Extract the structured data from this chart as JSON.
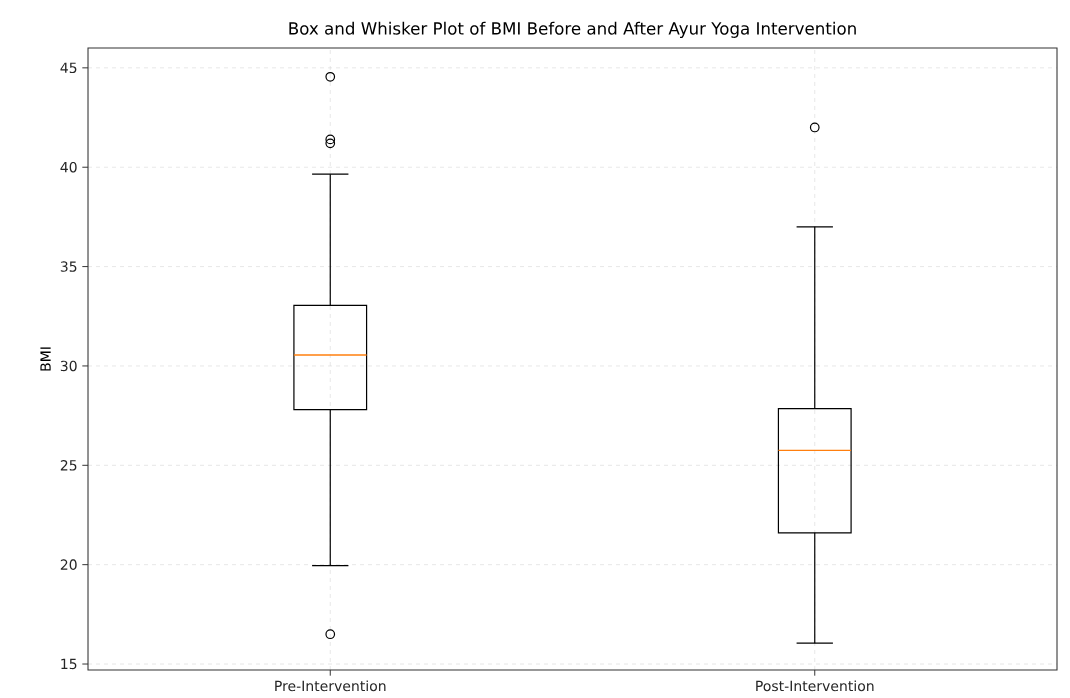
{
  "chart_data": {
    "type": "box",
    "title": "Box and Whisker Plot of BMI Before and After Ayur Yoga Intervention",
    "ylabel": "BMI",
    "categories": [
      "Pre-Intervention",
      "Post-Intervention"
    ],
    "boxes": [
      {
        "low": 19.95,
        "q1": 27.8,
        "median": 30.55,
        "q3": 33.05,
        "high": 39.65,
        "outliers": [
          44.55,
          41.4,
          41.2,
          16.5
        ]
      },
      {
        "low": 16.05,
        "q1": 21.6,
        "median": 25.75,
        "q3": 27.85,
        "high": 37.0,
        "outliers": [
          42.0
        ]
      }
    ],
    "ylim": [
      14.7,
      46.0
    ],
    "yticks": [
      15,
      20,
      25,
      30,
      35,
      40,
      45
    ],
    "grid": true
  }
}
